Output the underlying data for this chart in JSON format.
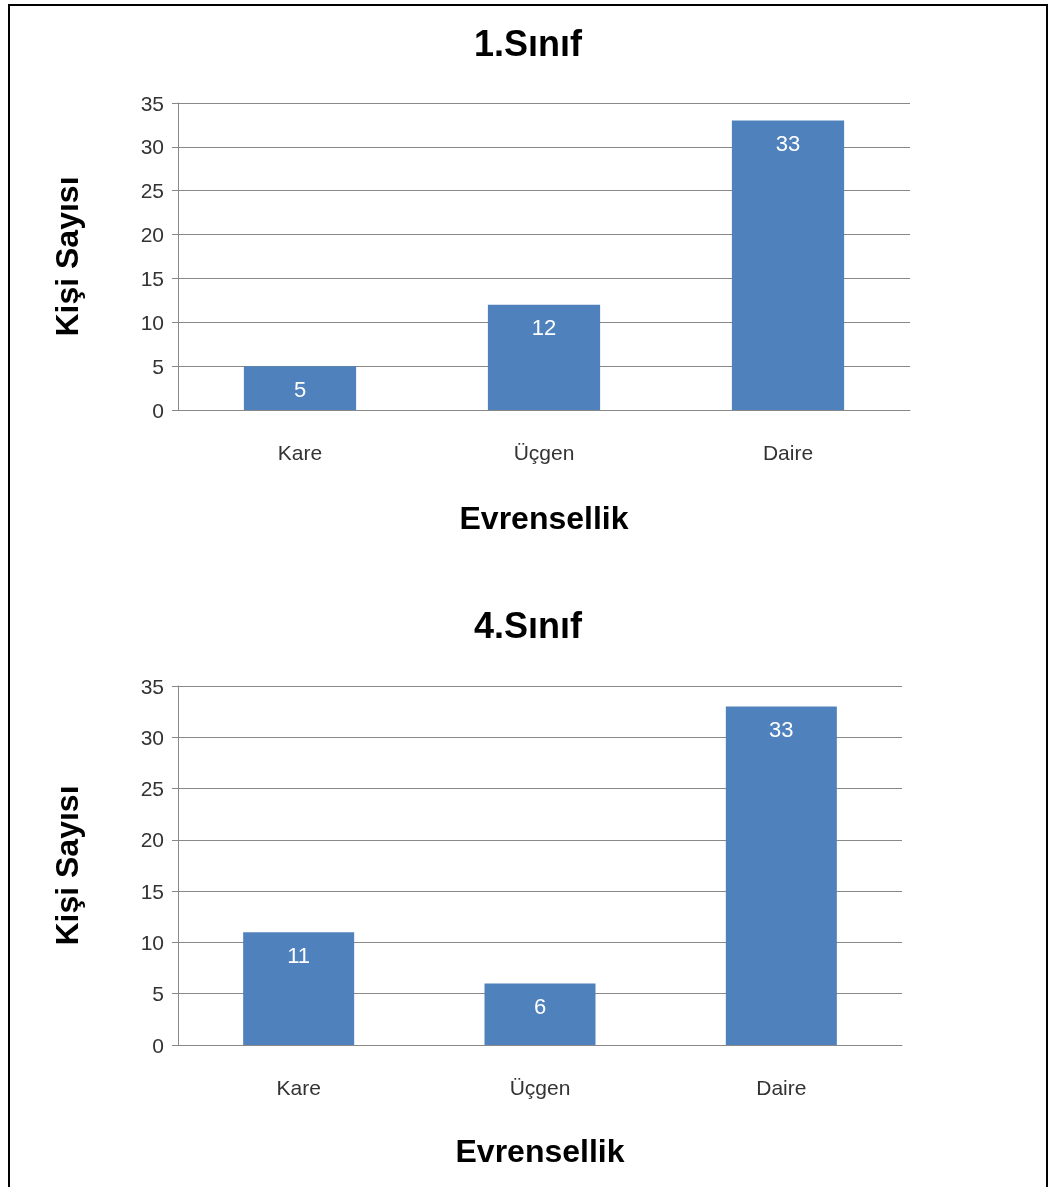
{
  "chart_data": [
    {
      "type": "bar",
      "title": "1.Sınıf",
      "xlabel": "Evrensellik",
      "ylabel": "Kişi Sayısı",
      "categories": [
        "Kare",
        "Üçgen",
        "Daire"
      ],
      "values": [
        5,
        12,
        33
      ],
      "color": "#4f81bd",
      "ylim": [
        0,
        35
      ],
      "yticks": [
        0,
        5,
        10,
        15,
        20,
        25,
        30,
        35
      ],
      "grid": "y",
      "data_labels": true
    },
    {
      "type": "bar",
      "title": "4.Sınıf",
      "xlabel": "Evrensellik",
      "ylabel": "Kişi Sayısı",
      "categories": [
        "Kare",
        "Üçgen",
        "Daire"
      ],
      "values": [
        11,
        6,
        33
      ],
      "color": "#4f81bd",
      "ylim": [
        0,
        35
      ],
      "yticks": [
        0,
        5,
        10,
        15,
        20,
        25,
        30,
        35
      ],
      "grid": "y",
      "data_labels": true
    }
  ]
}
